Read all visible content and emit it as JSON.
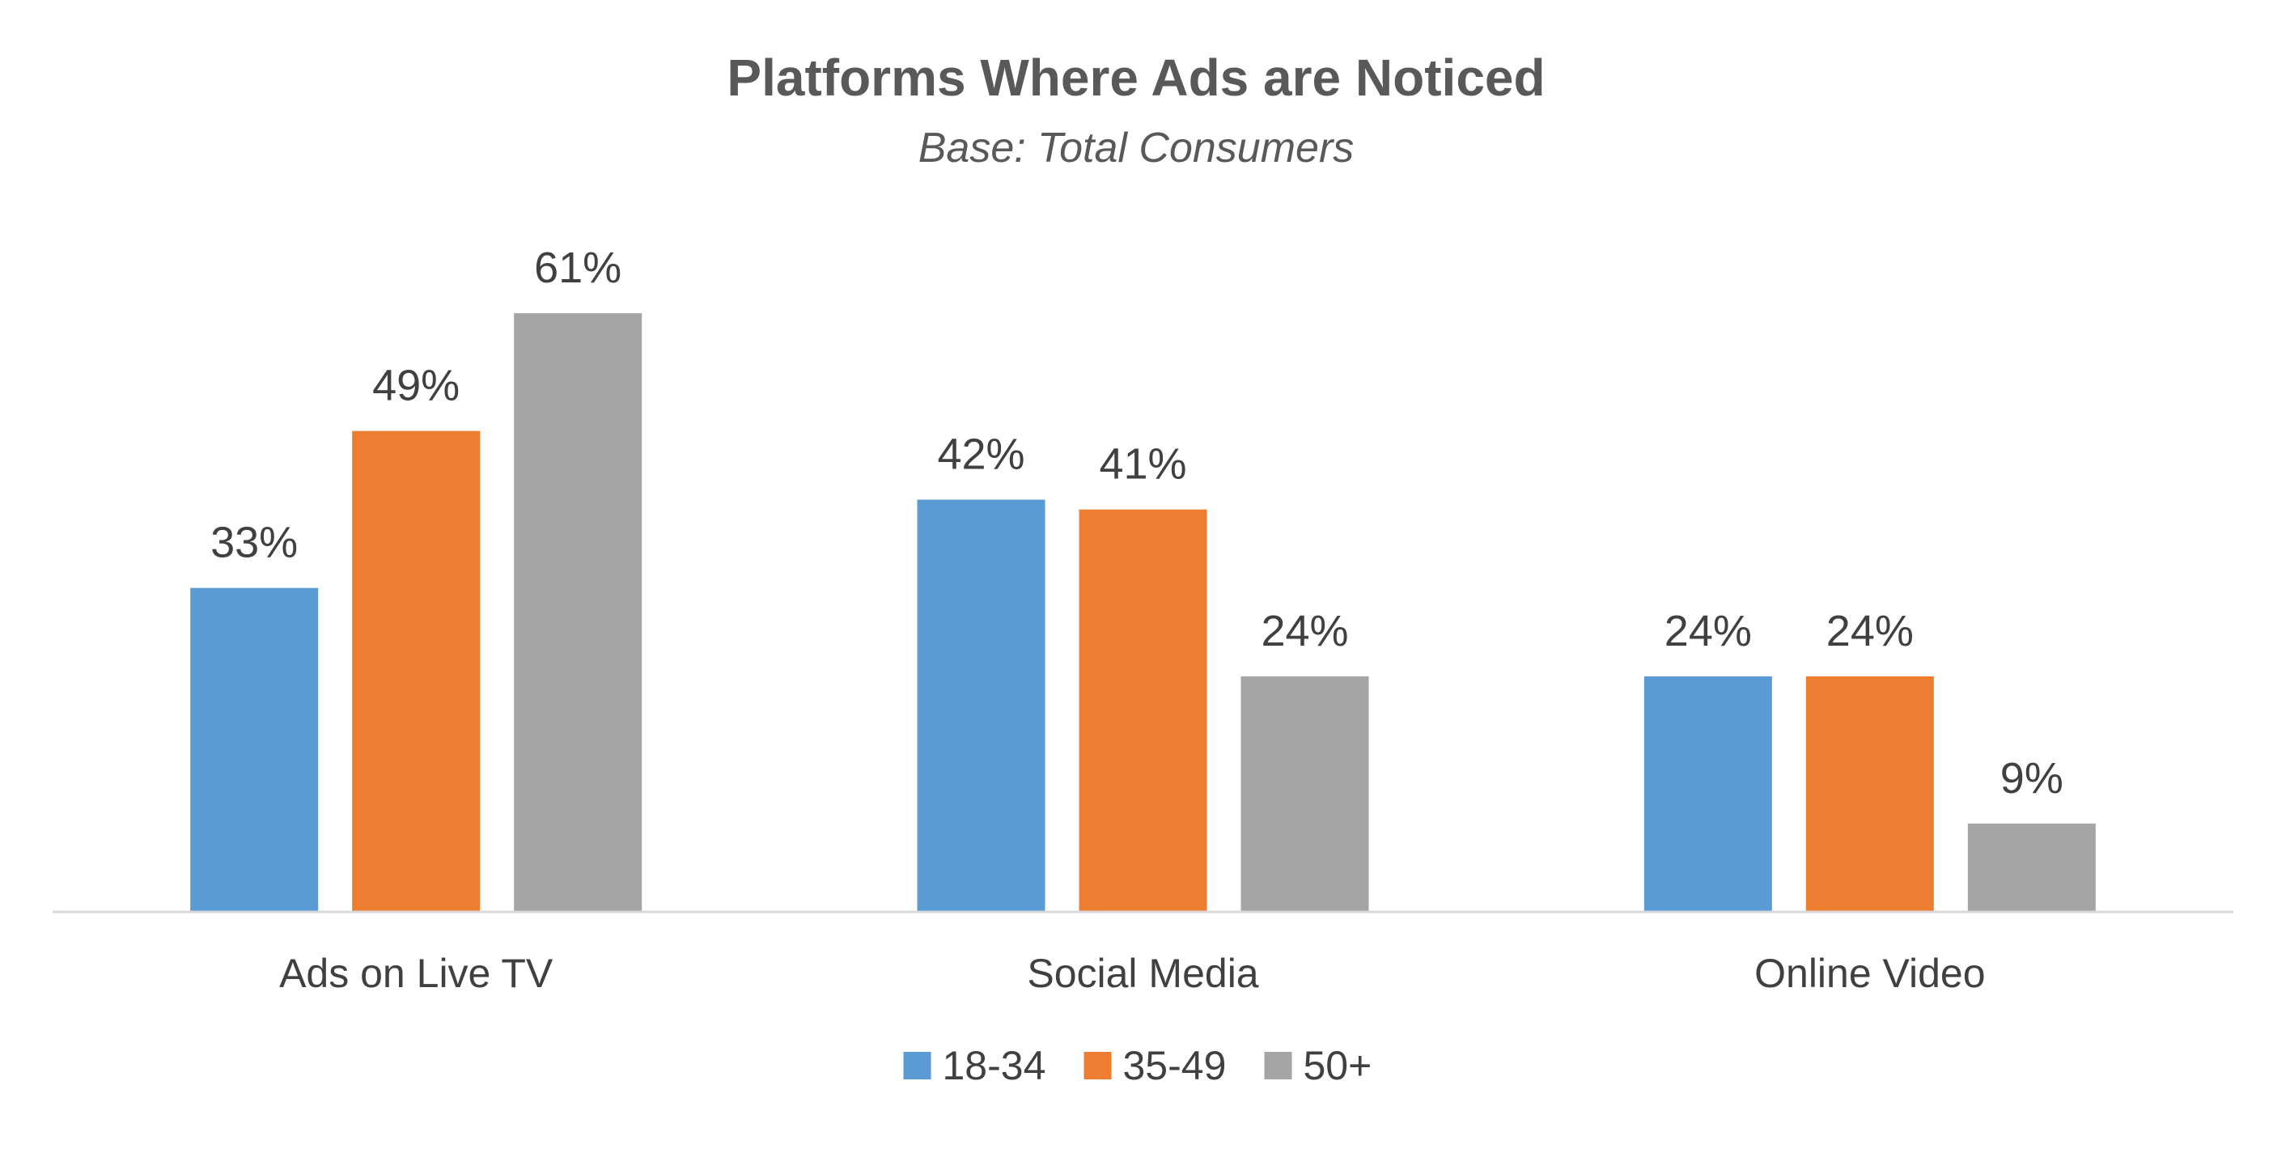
{
  "chart_data": {
    "type": "bar",
    "title": "Platforms Where Ads are Noticed",
    "subtitle": "Base: Total Consumers",
    "xlabel": "",
    "ylabel": "",
    "categories": [
      "Ads on Live TV",
      "Social Media",
      "Online Video"
    ],
    "series": [
      {
        "name": "18-34",
        "values": [
          33,
          42,
          24
        ],
        "color": "#5B9BD5"
      },
      {
        "name": "35-49",
        "values": [
          49,
          41,
          24
        ],
        "color": "#ED7D31"
      },
      {
        "name": "50+",
        "values": [
          61,
          24,
          9
        ],
        "color": "#A5A5A5"
      }
    ],
    "value_suffix": "%",
    "ylim": [
      0,
      70
    ],
    "grid": false,
    "legend_position": "bottom",
    "axis_line_color": "#D9D9D9"
  }
}
